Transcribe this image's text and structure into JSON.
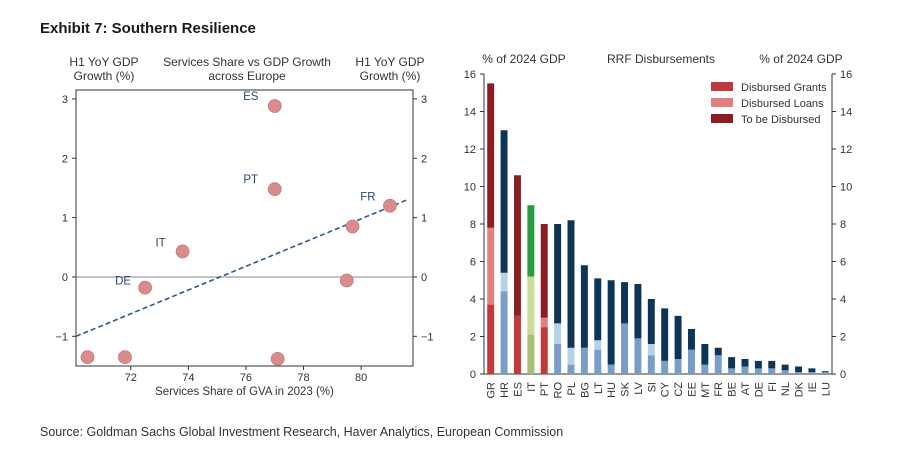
{
  "title": "Exhibit 7: Southern Resilience",
  "source": "Source: Goldman Sachs Global Investment Research, Haver Analytics, European Commission",
  "chart_data": [
    {
      "type": "scatter",
      "title_lines": [
        "Services Share vs GDP Growth",
        "across Europe"
      ],
      "left_axis_label_lines": [
        "H1 YoY GDP",
        "Growth (%)"
      ],
      "right_axis_label_lines": [
        "H1 YoY GDP",
        "Growth (%)"
      ],
      "xlabel": "Services Share of GVA in 2023 (%)",
      "xlim": [
        70.1,
        81.8
      ],
      "ylim": [
        -1.5,
        3.15
      ],
      "xticks": [
        72,
        74,
        76,
        78,
        80
      ],
      "yticks": [
        -1,
        0,
        1,
        2,
        3
      ],
      "points": [
        {
          "label": "ES",
          "x": 77.0,
          "y": 2.88
        },
        {
          "label": "PT",
          "x": 77.0,
          "y": 1.48
        },
        {
          "label": "FR",
          "x": 81.0,
          "y": 1.2
        },
        {
          "label": "",
          "x": 79.7,
          "y": 0.85
        },
        {
          "label": "IT",
          "x": 73.8,
          "y": 0.43
        },
        {
          "label": "DE",
          "x": 72.5,
          "y": -0.18
        },
        {
          "label": "",
          "x": 79.5,
          "y": -0.06
        },
        {
          "label": "",
          "x": 70.5,
          "y": -1.35
        },
        {
          "label": "",
          "x": 71.8,
          "y": -1.35
        },
        {
          "label": "",
          "x": 77.1,
          "y": -1.38
        }
      ],
      "trendline": {
        "x": [
          70.1,
          81.6
        ],
        "y": [
          -1.0,
          1.3
        ]
      },
      "point_color": "#d98c8c",
      "trend_color": "#2a5a8c"
    },
    {
      "type": "bar",
      "stacked": true,
      "title": "RRF Disbursements",
      "left_axis_label": "% of 2024 GDP",
      "right_axis_label": "% of 2024 GDP",
      "ylim": [
        0,
        16
      ],
      "yticks": [
        0,
        2,
        4,
        6,
        8,
        10,
        12,
        14,
        16
      ],
      "legend_position": "top-right",
      "legend": [
        "Disbursed Grants",
        "Disbursed Loans",
        "To be Disbursed"
      ],
      "legend_colors": [
        "#c0393b",
        "#e08080",
        "#8b1e22"
      ],
      "categories": [
        "GR",
        "HR",
        "ES",
        "IT",
        "PT",
        "RO",
        "PL",
        "BG",
        "LT",
        "HU",
        "SK",
        "LV",
        "SI",
        "CY",
        "CZ",
        "EE",
        "MT",
        "FR",
        "BE",
        "AT",
        "DE",
        "FI",
        "NL",
        "DK",
        "IE",
        "LU"
      ],
      "series": [
        {
          "name": "Disbursed Grants",
          "values": [
            3.7,
            4.4,
            3.1,
            2.1,
            2.5,
            1.6,
            0.5,
            1.4,
            1.3,
            0.5,
            2.7,
            1.9,
            1.0,
            0.7,
            0.8,
            1.3,
            0.5,
            1.0,
            0.3,
            0.4,
            0.3,
            0.3,
            0.2,
            0.1,
            0.1,
            0.1
          ]
        },
        {
          "name": "Disbursed Loans",
          "values": [
            4.1,
            1.0,
            0,
            3.1,
            0.5,
            1.1,
            0.9,
            0,
            0.5,
            0,
            0,
            0,
            0.6,
            0,
            0,
            0,
            0,
            0,
            0,
            0,
            0,
            0,
            0,
            0,
            0,
            0
          ]
        },
        {
          "name": "To be Disbursed",
          "values": [
            7.7,
            7.6,
            7.5,
            3.8,
            5.0,
            5.3,
            6.8,
            4.4,
            3.3,
            4.5,
            2.2,
            2.9,
            2.4,
            2.8,
            2.3,
            1.1,
            1.1,
            0.4,
            0.6,
            0.4,
            0.4,
            0.4,
            0.3,
            0.3,
            0.2,
            0.05
          ]
        }
      ],
      "colors": {
        "GR": [
          "#c0393b",
          "#e08080",
          "#8b1e22"
        ],
        "ES": [
          "#c0393b",
          "#e08080",
          "#8b1e22"
        ],
        "PT": [
          "#c0393b",
          "#e08080",
          "#8b1e22"
        ],
        "IT": [
          "#a8c070",
          "#c8dc98",
          "#2a9a44"
        ],
        "default": [
          "#7a9cc8",
          "#b8d0e8",
          "#0d3558"
        ]
      }
    }
  ]
}
